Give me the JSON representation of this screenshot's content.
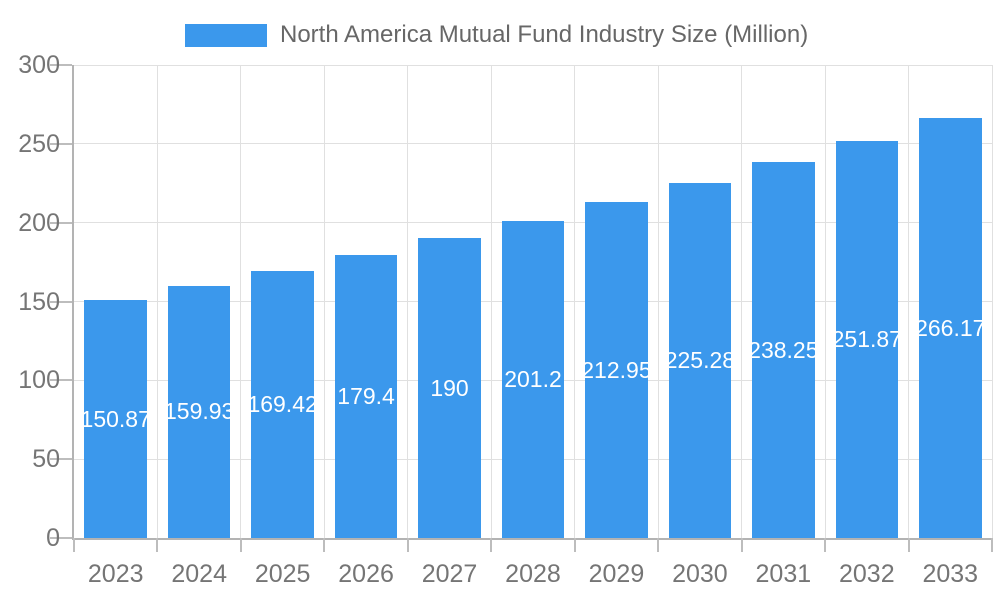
{
  "legend": {
    "label": "North America Mutual Fund Industry Size (Million)"
  },
  "chart_data": {
    "type": "bar",
    "title": "North America Mutual Fund Industry Size (Million)",
    "categories": [
      "2023",
      "2024",
      "2025",
      "2026",
      "2027",
      "2028",
      "2029",
      "2030",
      "2031",
      "2032",
      "2033"
    ],
    "values": [
      150.87,
      159.93,
      169.42,
      179.4,
      190,
      201.2,
      212.95,
      225.28,
      238.25,
      251.87,
      266.17
    ],
    "series_name": "North America Mutual Fund Industry Size (Million)",
    "xlabel": "",
    "ylabel": "",
    "ylim": [
      0,
      300
    ],
    "y_ticks": [
      0,
      50,
      100,
      150,
      200,
      250,
      300
    ],
    "grid": true,
    "legend_position": "top-center",
    "value_labels_position": "inside-center",
    "colors": {
      "bar": "#3B98EC",
      "bar_value_text": "#FFFFFF",
      "axis_text": "#757575",
      "legend_text": "#676767",
      "gridline": "#E0E0E0",
      "axis_line": "#B3B3B3",
      "tick": "#BDBDBD",
      "background": "#FFFFFF"
    }
  }
}
